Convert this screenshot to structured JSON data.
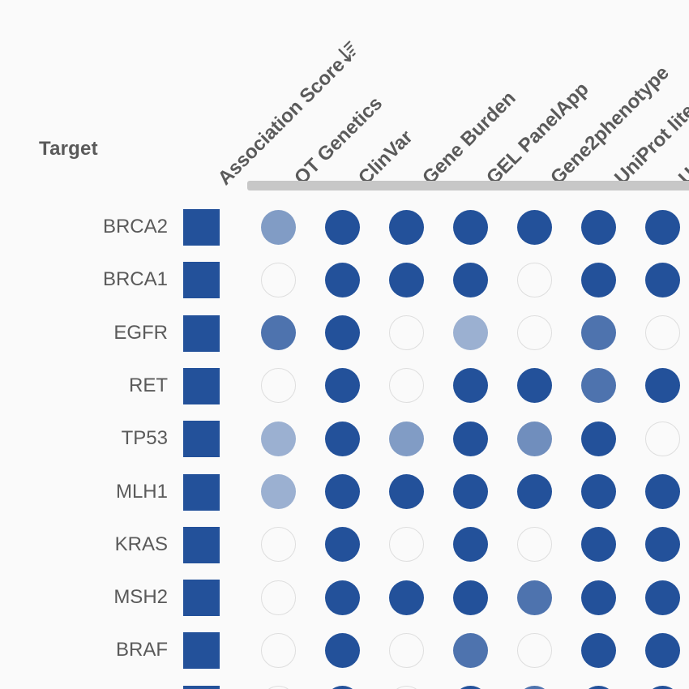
{
  "table": {
    "target_header": "Target",
    "columns": [
      {
        "label": "Association Score",
        "sort_icon": "sort-descending-icon",
        "sorted": true
      },
      {
        "label": "OT Genetics"
      },
      {
        "label": "ClinVar"
      },
      {
        "label": "Gene Burden"
      },
      {
        "label": "GEL PanelApp"
      },
      {
        "label": "Gene2phenotype"
      },
      {
        "label": "UniProt literature"
      },
      {
        "label": "UniProt curated variants"
      }
    ],
    "colors": {
      "accent": "#23519a",
      "empty_border": "#dedede",
      "group_bar": "#c7c7c7",
      "text": "#5a5a5a",
      "background": "#fafafa"
    },
    "rows": [
      {
        "target": "BRCA2",
        "association_score": 1.0,
        "scores": [
          0.45,
          1.0,
          1.0,
          1.0,
          1.0,
          1.0,
          1.0
        ]
      },
      {
        "target": "BRCA1",
        "association_score": 1.0,
        "scores": [
          0,
          1.0,
          1.0,
          1.0,
          0,
          1.0,
          1.0
        ]
      },
      {
        "target": "EGFR",
        "association_score": 1.0,
        "scores": [
          0.75,
          1.0,
          0,
          0.3,
          0,
          0.75,
          0
        ]
      },
      {
        "target": "RET",
        "association_score": 1.0,
        "scores": [
          0,
          1.0,
          0,
          1.0,
          1.0,
          0.75,
          1.0
        ]
      },
      {
        "target": "TP53",
        "association_score": 1.0,
        "scores": [
          0.3,
          1.0,
          0.45,
          1.0,
          0.55,
          1.0,
          0
        ]
      },
      {
        "target": "MLH1",
        "association_score": 1.0,
        "scores": [
          0.3,
          1.0,
          1.0,
          1.0,
          1.0,
          1.0,
          1.0
        ]
      },
      {
        "target": "KRAS",
        "association_score": 1.0,
        "scores": [
          0,
          1.0,
          0,
          1.0,
          0,
          1.0,
          1.0
        ]
      },
      {
        "target": "MSH2",
        "association_score": 1.0,
        "scores": [
          0,
          1.0,
          1.0,
          1.0,
          0.75,
          1.0,
          1.0
        ]
      },
      {
        "target": "BRAF",
        "association_score": 1.0,
        "scores": [
          0,
          1.0,
          0,
          0.75,
          0,
          1.0,
          1.0
        ]
      },
      {
        "target": "",
        "association_score": 1.0,
        "scores": [
          0,
          1.0,
          0,
          1.0,
          0.75,
          1.0,
          1.0
        ]
      }
    ]
  }
}
